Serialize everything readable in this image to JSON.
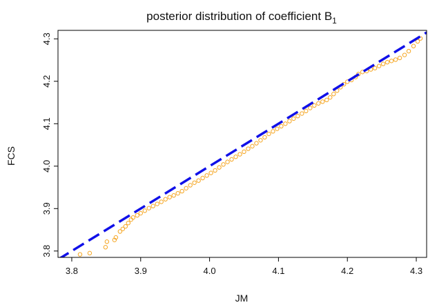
{
  "chart_data": {
    "type": "scatter",
    "title": "posterior distribution of coefficient B",
    "title_subscript": "1",
    "xlabel": "JM",
    "ylabel": "FCS",
    "xlim": [
      3.78,
      4.315
    ],
    "ylim": [
      3.785,
      4.32
    ],
    "x_ticks": [
      3.8,
      3.9,
      4.0,
      4.1,
      4.2,
      4.3
    ],
    "x_tick_labels": [
      "3.8",
      "3.9",
      "4.0",
      "4.1",
      "4.2",
      "4.3"
    ],
    "y_ticks": [
      3.8,
      3.9,
      4.0,
      4.1,
      4.2,
      4.3
    ],
    "y_tick_labels": [
      "3.8",
      "3.9",
      "4.0",
      "4.1",
      "4.2",
      "4.3"
    ],
    "grid": false,
    "legend": "none",
    "points_color": "#f5a623",
    "line_color": "#1010e8",
    "reference_line": {
      "style": "dashed",
      "x": [
        3.78,
        4.315
      ],
      "y": [
        3.78,
        4.315
      ]
    },
    "points": [
      {
        "x": 3.812,
        "y": 3.792
      },
      {
        "x": 3.826,
        "y": 3.795
      },
      {
        "x": 3.849,
        "y": 3.809
      },
      {
        "x": 3.851,
        "y": 3.822
      },
      {
        "x": 3.862,
        "y": 3.826
      },
      {
        "x": 3.864,
        "y": 3.832
      },
      {
        "x": 3.87,
        "y": 3.846
      },
      {
        "x": 3.874,
        "y": 3.852
      },
      {
        "x": 3.878,
        "y": 3.858
      },
      {
        "x": 3.882,
        "y": 3.866
      },
      {
        "x": 3.886,
        "y": 3.874
      },
      {
        "x": 3.889,
        "y": 3.879
      },
      {
        "x": 3.895,
        "y": 3.884
      },
      {
        "x": 3.9,
        "y": 3.889
      },
      {
        "x": 3.906,
        "y": 3.895
      },
      {
        "x": 3.912,
        "y": 3.901
      },
      {
        "x": 3.918,
        "y": 3.906
      },
      {
        "x": 3.924,
        "y": 3.911
      },
      {
        "x": 3.93,
        "y": 3.916
      },
      {
        "x": 3.936,
        "y": 3.922
      },
      {
        "x": 3.942,
        "y": 3.927
      },
      {
        "x": 3.948,
        "y": 3.931
      },
      {
        "x": 3.954,
        "y": 3.936
      },
      {
        "x": 3.96,
        "y": 3.941
      },
      {
        "x": 3.966,
        "y": 3.948
      },
      {
        "x": 3.972,
        "y": 3.955
      },
      {
        "x": 3.978,
        "y": 3.961
      },
      {
        "x": 3.984,
        "y": 3.966
      },
      {
        "x": 3.99,
        "y": 3.972
      },
      {
        "x": 3.996,
        "y": 3.978
      },
      {
        "x": 4.002,
        "y": 3.984
      },
      {
        "x": 4.008,
        "y": 3.99
      },
      {
        "x": 4.014,
        "y": 3.997
      },
      {
        "x": 4.02,
        "y": 4.004
      },
      {
        "x": 4.026,
        "y": 4.01
      },
      {
        "x": 4.032,
        "y": 4.016
      },
      {
        "x": 4.038,
        "y": 4.022
      },
      {
        "x": 4.044,
        "y": 4.028
      },
      {
        "x": 4.05,
        "y": 4.034
      },
      {
        "x": 4.056,
        "y": 4.041
      },
      {
        "x": 4.062,
        "y": 4.047
      },
      {
        "x": 4.068,
        "y": 4.054
      },
      {
        "x": 4.074,
        "y": 4.061
      },
      {
        "x": 4.08,
        "y": 4.068
      },
      {
        "x": 4.086,
        "y": 4.076
      },
      {
        "x": 4.092,
        "y": 4.082
      },
      {
        "x": 4.098,
        "y": 4.088
      },
      {
        "x": 4.104,
        "y": 4.094
      },
      {
        "x": 4.11,
        "y": 4.1
      },
      {
        "x": 4.116,
        "y": 4.106
      },
      {
        "x": 4.122,
        "y": 4.112
      },
      {
        "x": 4.128,
        "y": 4.118
      },
      {
        "x": 4.134,
        "y": 4.124
      },
      {
        "x": 4.14,
        "y": 4.13
      },
      {
        "x": 4.146,
        "y": 4.137
      },
      {
        "x": 4.152,
        "y": 4.143
      },
      {
        "x": 4.158,
        "y": 4.148
      },
      {
        "x": 4.164,
        "y": 4.152
      },
      {
        "x": 4.17,
        "y": 4.156
      },
      {
        "x": 4.175,
        "y": 4.162
      },
      {
        "x": 4.18,
        "y": 4.17
      },
      {
        "x": 4.185,
        "y": 4.178
      },
      {
        "x": 4.19,
        "y": 4.186
      },
      {
        "x": 4.195,
        "y": 4.193
      },
      {
        "x": 4.2,
        "y": 4.199
      },
      {
        "x": 4.206,
        "y": 4.203
      },
      {
        "x": 4.212,
        "y": 4.21
      },
      {
        "x": 4.216,
        "y": 4.217
      },
      {
        "x": 4.222,
        "y": 4.222
      },
      {
        "x": 4.228,
        "y": 4.224
      },
      {
        "x": 4.234,
        "y": 4.228
      },
      {
        "x": 4.24,
        "y": 4.231
      },
      {
        "x": 4.246,
        "y": 4.236
      },
      {
        "x": 4.252,
        "y": 4.241
      },
      {
        "x": 4.258,
        "y": 4.245
      },
      {
        "x": 4.264,
        "y": 4.248
      },
      {
        "x": 4.27,
        "y": 4.251
      },
      {
        "x": 4.276,
        "y": 4.255
      },
      {
        "x": 4.283,
        "y": 4.262
      },
      {
        "x": 4.289,
        "y": 4.271
      },
      {
        "x": 4.296,
        "y": 4.283
      },
      {
        "x": 4.302,
        "y": 4.294
      },
      {
        "x": 4.306,
        "y": 4.301
      }
    ]
  }
}
